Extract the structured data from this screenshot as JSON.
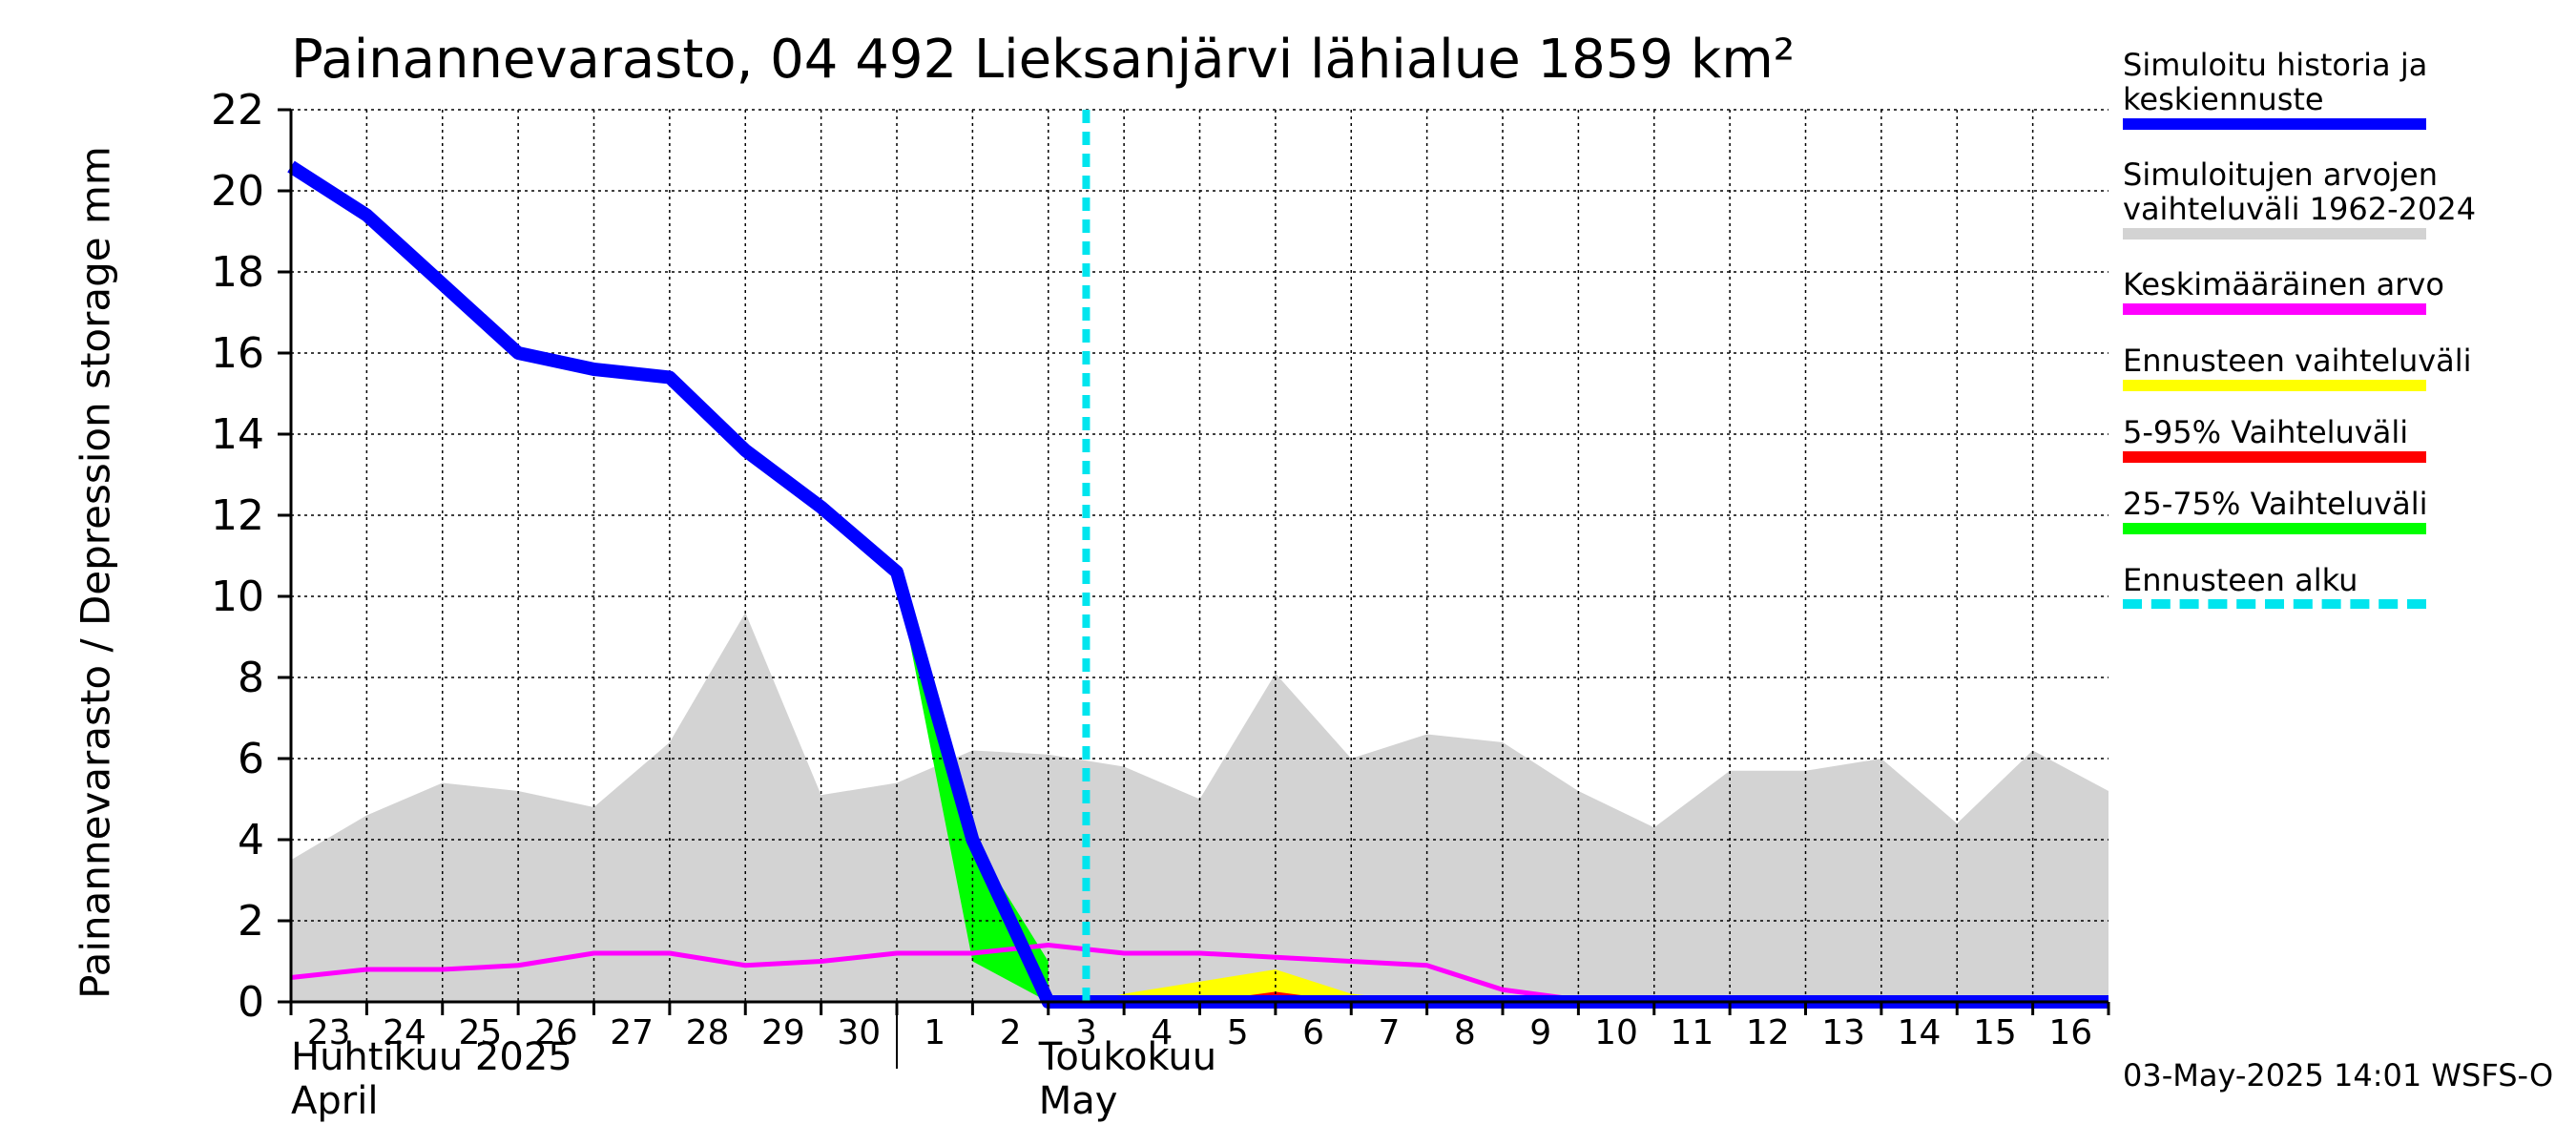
{
  "title": "Painannevarasto, 04 492 Lieksanjärvi lähialue 1859 km²",
  "timestamp": "03-May-2025 14:01 WSFS-O",
  "chart_data": {
    "type": "area",
    "title": "Painannevarasto, 04 492 Lieksanjärvi lähialue 1859 km²",
    "ylabel": "Painannevarasto / Depression storage    mm",
    "xlabel": "",
    "ylim": [
      0,
      22
    ],
    "yticks": [
      "0",
      "2",
      "4",
      "6",
      "8",
      "10",
      "12",
      "14",
      "16",
      "18",
      "20",
      "22"
    ],
    "x_day_labels": [
      "23",
      "24",
      "25",
      "26",
      "27",
      "28",
      "29",
      "30",
      "1",
      "2",
      "3",
      "4",
      "5",
      "6",
      "7",
      "8",
      "9",
      "10",
      "11",
      "12",
      "13",
      "14",
      "15",
      "16"
    ],
    "month_labels": [
      {
        "line1": "Huhtikuu  2025",
        "line2": "April"
      },
      {
        "line1": "Toukokuu",
        "line2": "May"
      }
    ],
    "grid": true,
    "legend_position": "right",
    "forecast_start_day": 10.5,
    "x_day_range": [
      0,
      24
    ],
    "legend": [
      {
        "label": "Simuloitu historia ja\nkeskiennuste",
        "color": "#0000ff",
        "style": "solid"
      },
      {
        "label": "Simuloitujen arvojen\nvaihteluväli 1962-2024",
        "color": "#d3d3d3",
        "style": "solid"
      },
      {
        "label": "Keskimääräinen arvo",
        "color": "#ff00ff",
        "style": "solid"
      },
      {
        "label": "Ennusteen vaihteluväli",
        "color": "#ffff00",
        "style": "solid"
      },
      {
        "label": "5-95% Vaihteluväli",
        "color": "#ff0000",
        "style": "solid"
      },
      {
        "label": "25-75% Vaihteluväli",
        "color": "#00ff00",
        "style": "solid"
      },
      {
        "label": "Ennusteen alku",
        "color": "#00e5ee",
        "style": "dashed"
      }
    ],
    "series": [
      {
        "name": "Simuloitujen arvojen vaihteluväli 1962-2024",
        "type": "band",
        "color": "#d3d3d3",
        "x": [
          0,
          1,
          2,
          3,
          4,
          5,
          6,
          7,
          8,
          9,
          10,
          11,
          12,
          13,
          14,
          15,
          16,
          17,
          18,
          19,
          20,
          21,
          22,
          23,
          24
        ],
        "low": [
          0,
          0,
          0,
          0,
          0,
          0,
          0,
          0,
          0,
          0,
          0,
          0,
          0,
          0,
          0,
          0,
          0,
          0,
          0,
          0,
          0,
          0,
          0,
          0,
          0
        ],
        "high": [
          3.5,
          4.6,
          5.4,
          5.2,
          4.8,
          6.4,
          9.6,
          5.1,
          5.4,
          6.2,
          6.1,
          5.8,
          5.0,
          8.1,
          6.0,
          6.6,
          6.4,
          5.2,
          4.3,
          5.7,
          5.7,
          6.0,
          4.4,
          6.2,
          5.2
        ]
      },
      {
        "name": "Ennusteen vaihteluväli",
        "type": "band",
        "color": "#ffff00",
        "x": [
          10.5,
          11,
          12,
          13,
          14,
          15
        ],
        "low": [
          0,
          0,
          0,
          0,
          0,
          0
        ],
        "high": [
          0,
          0.2,
          0.5,
          0.8,
          0.2,
          0
        ]
      },
      {
        "name": "5-95% Vaihteluväli",
        "type": "band",
        "color": "#ff0000",
        "x": [
          12,
          13,
          14
        ],
        "low": [
          0,
          0,
          0
        ],
        "high": [
          0,
          0.25,
          0
        ]
      },
      {
        "name": "25-75% Vaihteluväli",
        "type": "band",
        "color": "#00ff00",
        "x": [
          8,
          9,
          10
        ],
        "low": [
          10.5,
          1.0,
          0
        ],
        "high": [
          10.6,
          4.0,
          1.0
        ]
      },
      {
        "name": "Keskimääräinen arvo",
        "type": "line",
        "color": "#ff00ff",
        "x": [
          0,
          1,
          2,
          3,
          4,
          5,
          6,
          7,
          8,
          9,
          10,
          11,
          12,
          13,
          14,
          15,
          16,
          17,
          18,
          19,
          20,
          21,
          22,
          23,
          24
        ],
        "values": [
          0.6,
          0.8,
          0.8,
          0.9,
          1.2,
          1.2,
          0.9,
          1.0,
          1.2,
          1.2,
          1.4,
          1.2,
          1.2,
          1.1,
          1.0,
          0.9,
          0.3,
          0.05,
          0.05,
          0.05,
          0.05,
          0.05,
          0.05,
          0.05,
          0.05
        ]
      },
      {
        "name": "Simuloitu historia ja keskiennuste",
        "type": "line",
        "color": "#0000ff",
        "x": [
          0,
          1,
          2,
          3,
          4,
          5,
          6,
          7,
          8,
          9,
          10,
          11,
          12,
          13,
          14,
          15,
          16,
          17,
          18,
          19,
          20,
          21,
          22,
          23,
          24
        ],
        "values": [
          20.6,
          19.4,
          17.7,
          16.0,
          15.6,
          15.4,
          13.6,
          12.2,
          10.6,
          4.0,
          0,
          0,
          0,
          0,
          0,
          0,
          0,
          0,
          0,
          0,
          0,
          0,
          0,
          0,
          0
        ]
      }
    ]
  }
}
